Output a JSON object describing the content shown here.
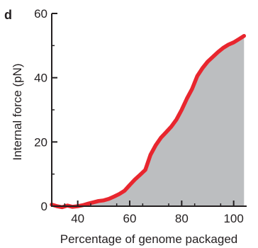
{
  "panel_label": "d",
  "chart_data": {
    "type": "area",
    "title": "",
    "xlabel": "Percentage of genome packaged",
    "ylabel": "Internal force (pN)",
    "xlim": [
      30,
      105
    ],
    "ylim": [
      0,
      60
    ],
    "x_ticks": [
      40,
      60,
      80,
      100
    ],
    "x_tick_labels": [
      "40",
      "60",
      "80",
      "100"
    ],
    "y_ticks": [
      0,
      20,
      40,
      60
    ],
    "y_tick_labels": [
      "0",
      "20",
      "40",
      "60"
    ],
    "grid": false,
    "legend": "none",
    "colors": {
      "line": "#e8262e",
      "fill": "#bcbec0",
      "axis": "#231f20"
    },
    "series": [
      {
        "x": [
          30,
          32,
          34,
          36,
          38,
          40,
          42,
          44,
          46,
          48,
          50,
          52,
          54,
          56,
          58,
          60,
          62,
          64,
          66,
          68,
          70,
          72,
          74,
          76,
          78,
          80,
          82,
          84,
          86,
          88,
          90,
          92,
          94,
          96,
          98,
          100,
          102,
          104
        ],
        "values": [
          0.5,
          0.0,
          -0.3,
          0.2,
          -0.2,
          0.0,
          0.3,
          0.8,
          1.2,
          1.6,
          1.8,
          2.3,
          3.0,
          3.8,
          4.8,
          6.6,
          8.3,
          9.8,
          11.3,
          16.0,
          19.0,
          21.3,
          23.0,
          24.8,
          27.0,
          30.0,
          33.5,
          36.5,
          40.5,
          43.0,
          45.0,
          46.5,
          48.0,
          49.3,
          50.3,
          51.0,
          52.0,
          53.0
        ]
      }
    ]
  }
}
